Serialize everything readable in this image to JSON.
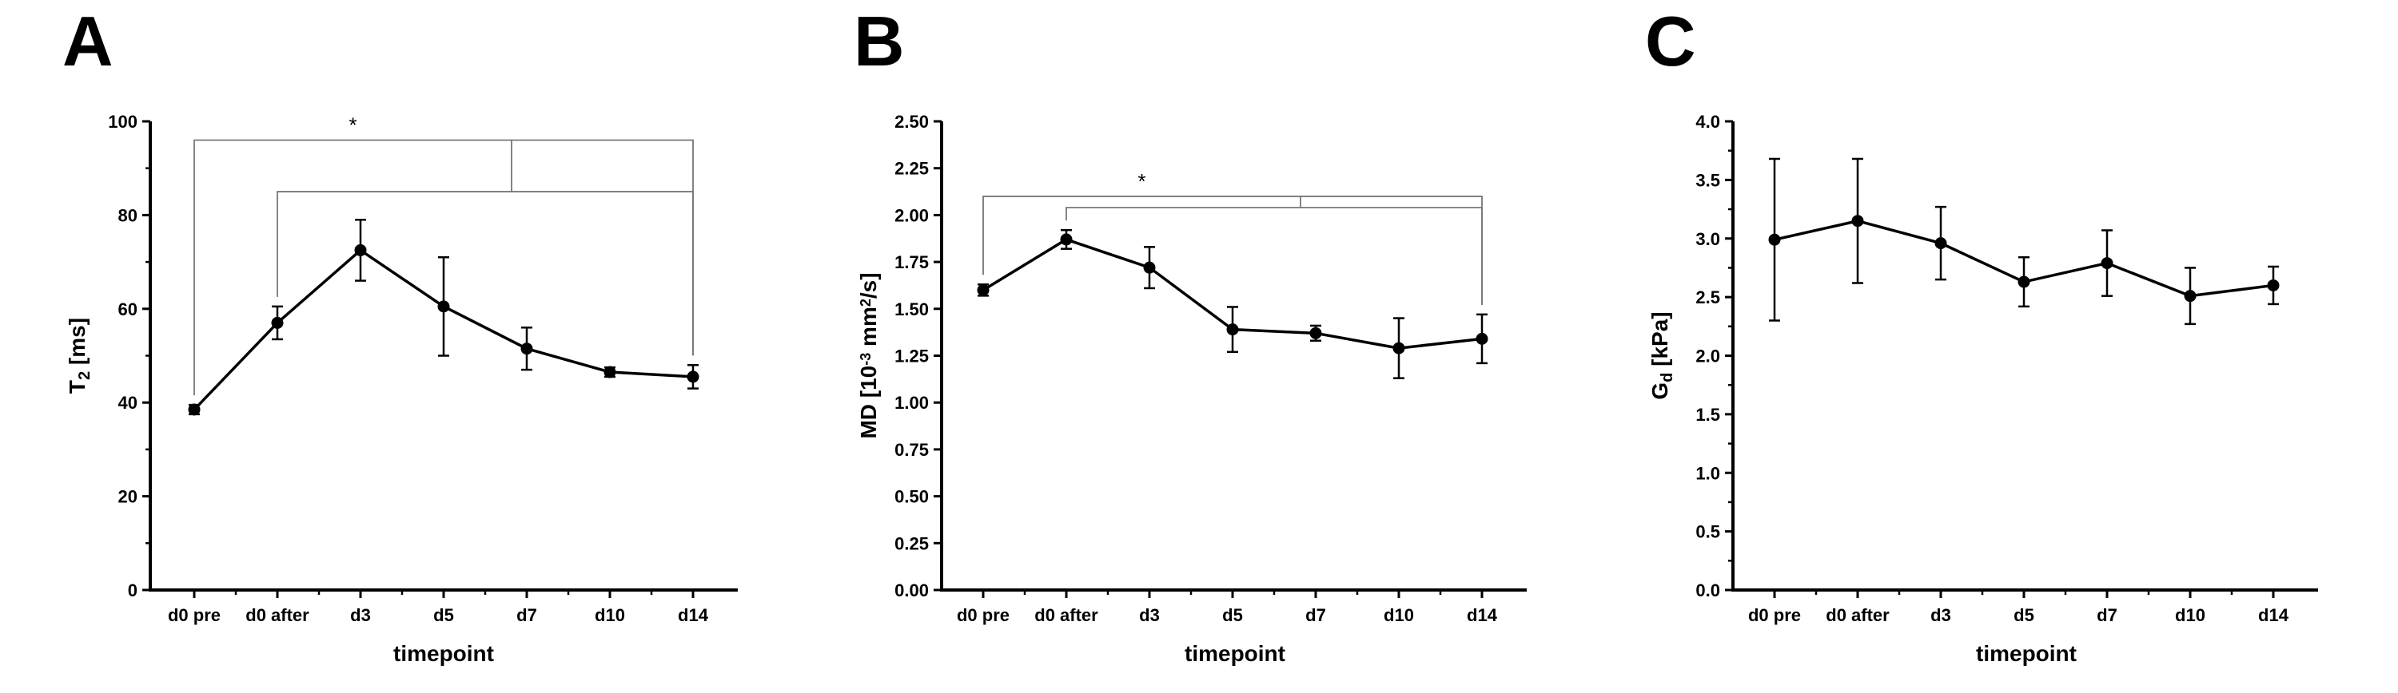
{
  "chart_data": [
    {
      "type": "line",
      "panel_label": "A",
      "categories": [
        "d0 pre",
        "d0 after",
        "d3",
        "d5",
        "d7",
        "d10",
        "d14"
      ],
      "series": [
        {
          "values": [
            38.5,
            57,
            72.5,
            60.5,
            51.5,
            46.5,
            45.5
          ],
          "error": [
            1,
            3.5,
            6.5,
            10.5,
            4.5,
            1,
            2.5
          ]
        }
      ],
      "ylabel_main": "T",
      "ylabel_sub": "2",
      "ylabel_rest": " [ms]",
      "xlabel": "timepoint",
      "ylim": [
        0,
        100
      ],
      "yticks": [
        "0",
        "20",
        "40",
        "60",
        "80",
        "100"
      ],
      "significance_label": "*",
      "significance_brackets": [
        {
          "from": "d0 pre",
          "to": "d14",
          "level": 96
        },
        {
          "from": "d0 after",
          "to": "d14",
          "level": 85
        }
      ],
      "grid": false
    },
    {
      "type": "line",
      "panel_label": "B",
      "categories": [
        "d0 pre",
        "d0 after",
        "d3",
        "d5",
        "d7",
        "d10",
        "d14"
      ],
      "series": [
        {
          "values": [
            1.6,
            1.87,
            1.72,
            1.39,
            1.37,
            1.29,
            1.34
          ],
          "error": [
            0.03,
            0.05,
            0.11,
            0.12,
            0.04,
            0.16,
            0.13
          ]
        }
      ],
      "ylabel_main": "MD [10",
      "ylabel_sup1": "-3",
      "ylabel_mid": " mm",
      "ylabel_sup2": "2",
      "ylabel_rest": "/s]",
      "xlabel": "timepoint",
      "ylim": [
        0,
        2.5
      ],
      "yticks": [
        "0.00",
        "0.25",
        "0.50",
        "0.75",
        "1.00",
        "1.25",
        "1.50",
        "1.75",
        "2.00",
        "2.25",
        "2.50"
      ],
      "significance_label": "*",
      "significance_brackets": [
        {
          "from": "d0 pre",
          "to": "d14",
          "level": 2.1
        },
        {
          "from": "d0 after",
          "to": "d14",
          "level": 2.04
        }
      ],
      "grid": false
    },
    {
      "type": "line",
      "panel_label": "C",
      "categories": [
        "d0 pre",
        "d0 after",
        "d3",
        "d5",
        "d7",
        "d10",
        "d14"
      ],
      "series": [
        {
          "values": [
            2.99,
            3.15,
            2.96,
            2.63,
            2.79,
            2.51,
            2.6
          ],
          "error": [
            0.69,
            0.53,
            0.31,
            0.21,
            0.28,
            0.24,
            0.16
          ]
        }
      ],
      "ylabel_main": "G",
      "ylabel_sub": "d",
      "ylabel_rest": " [kPa]",
      "xlabel": "timepoint",
      "ylim": [
        0,
        4
      ],
      "yticks": [
        "0.0",
        "0.5",
        "1.0",
        "1.5",
        "2.0",
        "2.5",
        "3.0",
        "3.5",
        "4.0"
      ],
      "grid": false
    }
  ]
}
